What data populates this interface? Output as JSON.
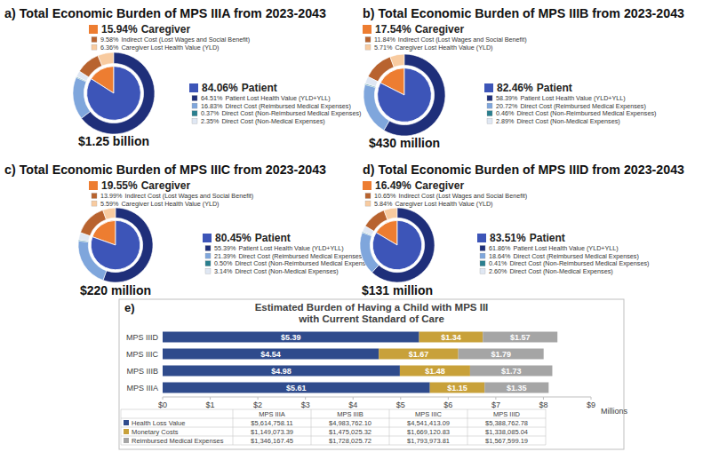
{
  "chart_data": [
    {
      "type": "pie",
      "title": "a) Total Economic Burden of MPS IIIA from 2023-2043",
      "total": "$1.25 billion",
      "series": [
        {
          "name": "Caregiver",
          "value": 15.94,
          "value_label": "15.94%",
          "color": "#ed7d31",
          "categories": [
            "Indirect Cost (Lost Wages and Social Benefit)",
            "Caregiver Lost Health Value (YLD)"
          ],
          "values": [
            9.58,
            6.36
          ],
          "value_labels": [
            "9.58%",
            "6.36%"
          ],
          "colors": [
            "#b8632f",
            "#f8cba0"
          ]
        },
        {
          "name": "Patient",
          "value": 84.06,
          "value_label": "84.06%",
          "color": "#3d55b8",
          "categories": [
            "Patient Lost Health Value (YLD+YLL)",
            "Direct Cost (Reimbursed Medical Expenses)",
            "Direct Cost (Non-Reimbursed Medical Expenses)",
            "Direct Cost (Non-Medical Expenses)"
          ],
          "values": [
            64.51,
            16.83,
            0.37,
            2.35
          ],
          "value_labels": [
            "64.51%",
            "16.83%",
            "0.37%",
            "2.35%"
          ],
          "colors": [
            "#1f2f7a",
            "#7fa6dc",
            "#2a7f8f",
            "#dfe7f3"
          ]
        }
      ]
    },
    {
      "type": "pie",
      "title": "b) Total Economic Burden of MPS IIIB from 2023-2043",
      "total": "$430 million",
      "series": [
        {
          "name": "Caregiver",
          "value": 17.54,
          "value_label": "17.54%",
          "color": "#ed7d31",
          "categories": [
            "Indirect Cost (Lost Wages and Social Benefit)",
            "Caregiver Lost Health Value (YLD)"
          ],
          "values": [
            11.84,
            5.71
          ],
          "value_labels": [
            "11.84%",
            "5.71%"
          ],
          "colors": [
            "#b8632f",
            "#f8cba0"
          ]
        },
        {
          "name": "Patient",
          "value": 82.46,
          "value_label": "82.46%",
          "color": "#3d55b8",
          "categories": [
            "Patient Lost Health Value (YLD+YLL)",
            "Direct Cost (Reimbursed Medical Expenses)",
            "Direct Cost (Non-Reimbursed Medical Expenses)",
            "Direct Cost (Non-Medical Expenses)"
          ],
          "values": [
            58.39,
            20.72,
            0.46,
            2.89
          ],
          "value_labels": [
            "58.39%",
            "20.72%",
            "0.46%",
            "2.89%"
          ],
          "colors": [
            "#1f2f7a",
            "#7fa6dc",
            "#2a7f8f",
            "#dfe7f3"
          ]
        }
      ]
    },
    {
      "type": "pie",
      "title": "c) Total Economic Burden of MPS IIIC from 2023-2043",
      "total": "$220 million",
      "series": [
        {
          "name": "Caregiver",
          "value": 19.55,
          "value_label": "19.55%",
          "color": "#ed7d31",
          "categories": [
            "Indirect Cost (Lost Wages and Social Benefit)",
            "Caregiver Lost Health Value (YLD)"
          ],
          "values": [
            13.99,
            5.59
          ],
          "value_labels": [
            "13.99%",
            "5.59%"
          ],
          "colors": [
            "#b8632f",
            "#f8cba0"
          ]
        },
        {
          "name": "Patient",
          "value": 80.45,
          "value_label": "80.45%",
          "color": "#3d55b8",
          "categories": [
            "Patient Lost Health Value (YLD+YLL)",
            "Direct Cost (Reimbursed Medical Expenses)",
            "Direct Cost (Non-Reimbursed Medical Expenses)",
            "Direct Cost (Non-Medical Expenses)"
          ],
          "values": [
            55.39,
            21.39,
            0.5,
            3.14
          ],
          "value_labels": [
            "55.39%",
            "21.39%",
            "0.50%",
            "3.14%"
          ],
          "colors": [
            "#1f2f7a",
            "#7fa6dc",
            "#2a7f8f",
            "#dfe7f3"
          ]
        }
      ]
    },
    {
      "type": "pie",
      "title": "d) Total Economic Burden of MPS IIID from 2023-2043",
      "total": "$131 million",
      "series": [
        {
          "name": "Caregiver",
          "value": 16.49,
          "value_label": "16.49%",
          "color": "#ed7d31",
          "categories": [
            "Indirect Cost (Lost Wages and Social Benefit)",
            "Caregiver Lost Health Value (YLD)"
          ],
          "values": [
            10.65,
            5.84
          ],
          "value_labels": [
            "10.65%",
            "5.84%"
          ],
          "colors": [
            "#b8632f",
            "#f8cba0"
          ]
        },
        {
          "name": "Patient",
          "value": 83.51,
          "value_label": "83.51%",
          "color": "#3d55b8",
          "categories": [
            "Patient Lost Health Value (YLD+YLL)",
            "Direct Cost (Reimbursed Medical Expenses)",
            "Direct Cost (Non-Reimbursed Medical Expenses)",
            "Direct Cost (Non-Medical Expenses)"
          ],
          "values": [
            61.86,
            18.64,
            0.41,
            2.6
          ],
          "value_labels": [
            "61.86%",
            "18.64%",
            "0.41%",
            "2.60%"
          ],
          "colors": [
            "#1f2f7a",
            "#7fa6dc",
            "#2a7f8f",
            "#dfe7f3"
          ]
        }
      ]
    },
    {
      "type": "bar",
      "panel_label": "e)",
      "title": "Estimated Burden of Having a Child with MPS III",
      "subtitle": "with Current Standard of Care",
      "orientation": "horizontal",
      "stacked": true,
      "data_labels": true,
      "grid": false,
      "legend": "bottom",
      "categories": [
        "MPS IIIA",
        "MPS IIIB",
        "MPS IIIC",
        "MPS IIID"
      ],
      "xlabel": "Millions",
      "xlim": [
        0,
        9
      ],
      "xticks": [
        {
          "value": 0,
          "label": "$0"
        },
        {
          "value": 1,
          "label": "$1"
        },
        {
          "value": 2,
          "label": "$2"
        },
        {
          "value": 3,
          "label": "$3"
        },
        {
          "value": 4,
          "label": "$4"
        },
        {
          "value": 5,
          "label": "$5"
        },
        {
          "value": 6,
          "label": "$6"
        },
        {
          "value": 7,
          "label": "$7"
        },
        {
          "value": 8,
          "label": "$8"
        },
        {
          "value": 9,
          "label": "$9"
        }
      ],
      "series": [
        {
          "name": "Health Loss Value",
          "color": "#2f4b8c",
          "values": [
            5.61475811,
            4.9837621,
            4.54141309,
            5.38876278
          ],
          "value_labels": [
            "$5.61",
            "$4.98",
            "$4.54",
            "$5.39"
          ],
          "table_values": [
            "$5,614,758.11",
            "$4,983,762.10",
            "$4,541,413.09",
            "$5,388,762.78"
          ]
        },
        {
          "name": "Monetary Costs",
          "color": "#c8a13a",
          "values": [
            1.14907339,
            1.47502532,
            1.66912083,
            1.33808504
          ],
          "value_labels": [
            "$1.15",
            "$1.48",
            "$1.67",
            "$1.34"
          ],
          "table_values": [
            "$1,149,073.39",
            "$1,475,025.32",
            "$1,669,120.83",
            "$1,338,085.04"
          ]
        },
        {
          "name": "Reimbursed Medical Expenses",
          "color": "#a5a5a5",
          "values": [
            1.34616745,
            1.72802572,
            1.79397381,
            1.56759919
          ],
          "value_labels": [
            "$1.35",
            "$1.73",
            "$1.79",
            "$1.57"
          ],
          "table_values": [
            "$1,346,167.45",
            "$1,728,025.72",
            "$1,793,973.81",
            "$1,567,599.19"
          ]
        }
      ]
    }
  ]
}
